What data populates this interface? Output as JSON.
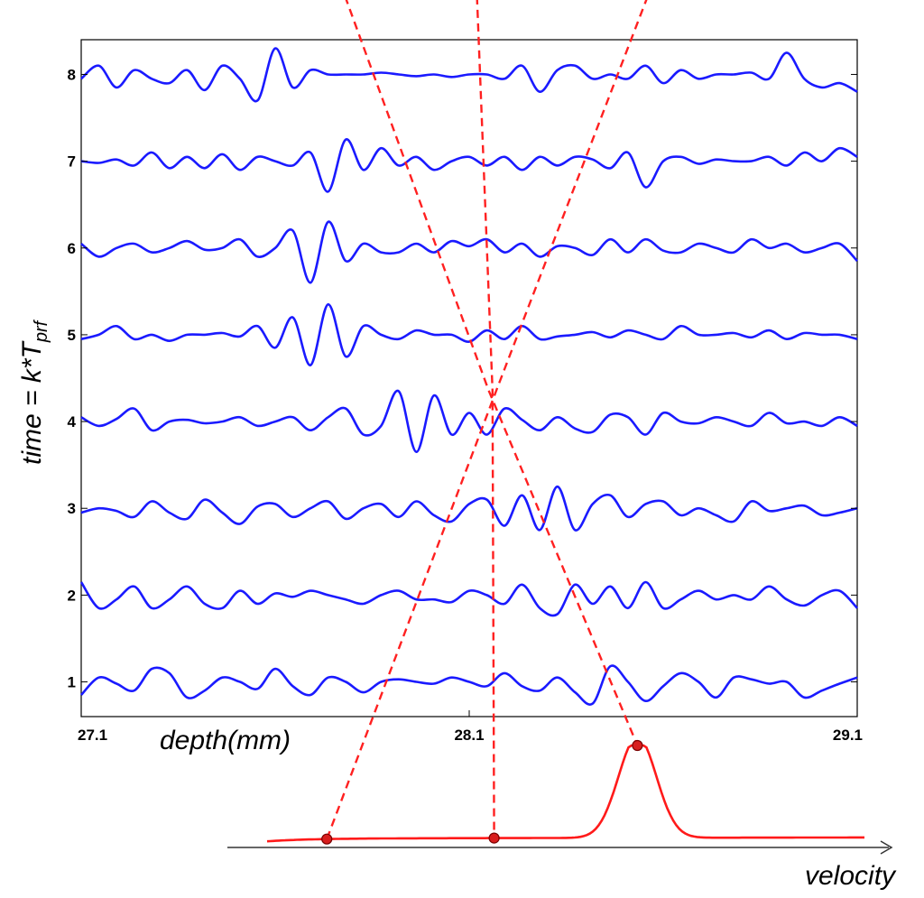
{
  "chart_data": {
    "type": "line",
    "subtype": "stacked-waveforms-with-velocity-spectrum",
    "xlabel": "depth(mm)",
    "ylabel_main": "time = k*T",
    "ylabel_subscript": "prf",
    "x_ticks": [
      "27.1",
      "28.1",
      "29.1"
    ],
    "xlim": [
      27.1,
      29.1
    ],
    "y_ticks": [
      "1",
      "2",
      "3",
      "4",
      "5",
      "6",
      "7",
      "8"
    ],
    "ylim": [
      0.6,
      8.4
    ],
    "grid": false,
    "trace_color": "#1a1aff",
    "overlay_color": "#ff2020",
    "series": [
      {
        "k": 1,
        "values": [
          0.85,
          1.05,
          0.98,
          0.9,
          1.15,
          1.1,
          0.82,
          0.9,
          1.05,
          1.0,
          0.92,
          1.15,
          0.95,
          0.85,
          1.05,
          1.0,
          0.88,
          1.0,
          1.03,
          1.0,
          0.98,
          1.05,
          1.0,
          0.95,
          1.1,
          0.95,
          0.9,
          1.05,
          0.88,
          0.75,
          1.18,
          1.0,
          0.78,
          0.95,
          1.1,
          1.0,
          0.82,
          1.05,
          1.03,
          0.98,
          1.0,
          0.82,
          0.9,
          0.98,
          1.05
        ]
      },
      {
        "k": 2,
        "values": [
          2.15,
          1.85,
          1.95,
          2.1,
          1.85,
          1.95,
          2.1,
          1.9,
          1.85,
          2.05,
          1.9,
          2.02,
          1.98,
          2.05,
          2.0,
          1.95,
          1.9,
          2.0,
          2.05,
          1.95,
          1.95,
          1.92,
          2.05,
          2.0,
          1.9,
          2.12,
          1.85,
          1.78,
          2.12,
          1.9,
          2.1,
          1.85,
          2.15,
          1.85,
          1.95,
          2.05,
          1.95,
          2.0,
          1.95,
          2.1,
          1.95,
          1.88,
          2.0,
          2.05,
          1.85
        ]
      },
      {
        "k": 3,
        "values": [
          2.95,
          3.0,
          2.97,
          2.9,
          3.08,
          2.95,
          2.88,
          3.1,
          2.95,
          2.82,
          3.02,
          3.05,
          2.9,
          3.0,
          3.08,
          2.88,
          3.0,
          3.05,
          2.9,
          3.08,
          2.92,
          2.85,
          3.05,
          3.1,
          2.8,
          3.15,
          2.75,
          3.25,
          2.75,
          3.05,
          3.15,
          2.9,
          3.05,
          3.08,
          2.92,
          3.0,
          2.92,
          2.85,
          3.08,
          2.97,
          3.0,
          3.03,
          2.92,
          2.95,
          3.0
        ]
      },
      {
        "k": 4,
        "values": [
          4.05,
          3.95,
          4.03,
          4.15,
          3.9,
          4.0,
          4.02,
          3.98,
          4.0,
          4.05,
          3.95,
          4.0,
          4.05,
          3.9,
          4.05,
          4.15,
          3.85,
          3.95,
          4.35,
          3.65,
          4.3,
          3.85,
          4.1,
          3.85,
          4.15,
          4.02,
          3.9,
          4.05,
          3.92,
          3.88,
          4.08,
          4.05,
          3.85,
          4.1,
          4.0,
          3.98,
          4.05,
          4.0,
          3.95,
          4.1,
          3.98,
          4.0,
          3.95,
          4.05,
          3.95
        ]
      },
      {
        "k": 5,
        "values": [
          4.95,
          5.0,
          5.1,
          4.95,
          5.0,
          4.93,
          5.0,
          5.0,
          5.02,
          4.98,
          5.1,
          4.85,
          5.2,
          4.65,
          5.35,
          4.75,
          5.1,
          5.0,
          4.95,
          5.05,
          5.0,
          5.0,
          4.92,
          5.05,
          4.95,
          5.1,
          4.95,
          4.98,
          5.0,
          5.03,
          4.97,
          5.05,
          5.0,
          4.95,
          5.1,
          5.0,
          5.0,
          5.02,
          4.97,
          5.05,
          4.95,
          5.02,
          5.0,
          5.0,
          4.95
        ]
      },
      {
        "k": 6,
        "values": [
          6.05,
          5.9,
          6.0,
          6.05,
          5.95,
          6.0,
          6.08,
          5.98,
          6.0,
          6.1,
          5.9,
          6.0,
          6.2,
          5.6,
          6.3,
          5.85,
          6.05,
          5.95,
          5.95,
          6.05,
          5.95,
          6.08,
          6.02,
          6.1,
          5.95,
          6.05,
          5.9,
          6.02,
          6.0,
          5.92,
          6.1,
          5.95,
          6.1,
          5.97,
          5.95,
          6.05,
          6.0,
          5.95,
          6.1,
          6.0,
          6.05,
          5.95,
          6.0,
          6.05,
          5.85
        ]
      },
      {
        "k": 7,
        "values": [
          7.0,
          6.98,
          7.02,
          6.95,
          7.1,
          6.92,
          7.05,
          6.92,
          7.08,
          6.9,
          7.05,
          7.0,
          6.95,
          7.1,
          6.65,
          7.25,
          6.9,
          7.15,
          6.95,
          7.05,
          6.9,
          7.0,
          7.05,
          6.95,
          7.05,
          6.9,
          7.05,
          6.95,
          7.05,
          7.02,
          6.92,
          7.1,
          6.7,
          7.0,
          7.05,
          6.97,
          7.02,
          7.0,
          7.0,
          7.05,
          6.95,
          7.1,
          7.0,
          7.15,
          7.05
        ]
      },
      {
        "k": 8,
        "values": [
          7.95,
          8.1,
          7.85,
          8.05,
          7.95,
          7.9,
          8.05,
          7.82,
          8.1,
          7.95,
          7.7,
          8.3,
          7.85,
          8.05,
          8.0,
          8.0,
          8.0,
          8.02,
          8.0,
          7.98,
          8.0,
          7.97,
          8.0,
          8.0,
          7.95,
          8.1,
          7.8,
          8.05,
          8.1,
          7.95,
          8.0,
          7.95,
          8.1,
          7.9,
          8.05,
          7.95,
          8.0,
          8.0,
          8.02,
          7.95,
          8.25,
          7.95,
          7.85,
          7.9,
          7.8
        ]
      }
    ],
    "velocity_spectrum": {
      "xlabel": "velocity",
      "peak": {
        "position": 0.62,
        "height": 1.0
      },
      "baseline_level": 0.08,
      "marked_points": [
        0.1,
        0.38,
        0.62
      ]
    },
    "overlay_lines": [
      {
        "from_time_k": 8.9,
        "from_depth": 27.78,
        "through_time_k": 4.36,
        "through_depth": 28.15,
        "to_spectrum_point": 2
      },
      {
        "from_time_k": 8.9,
        "from_depth": 28.12,
        "through_time_k": 4.36,
        "through_depth": 28.16,
        "to_spectrum_point": 1
      },
      {
        "from_time_k": 8.9,
        "from_depth": 28.56,
        "through_time_k": 4.36,
        "through_depth": 28.17,
        "to_spectrum_point": 0
      }
    ]
  }
}
